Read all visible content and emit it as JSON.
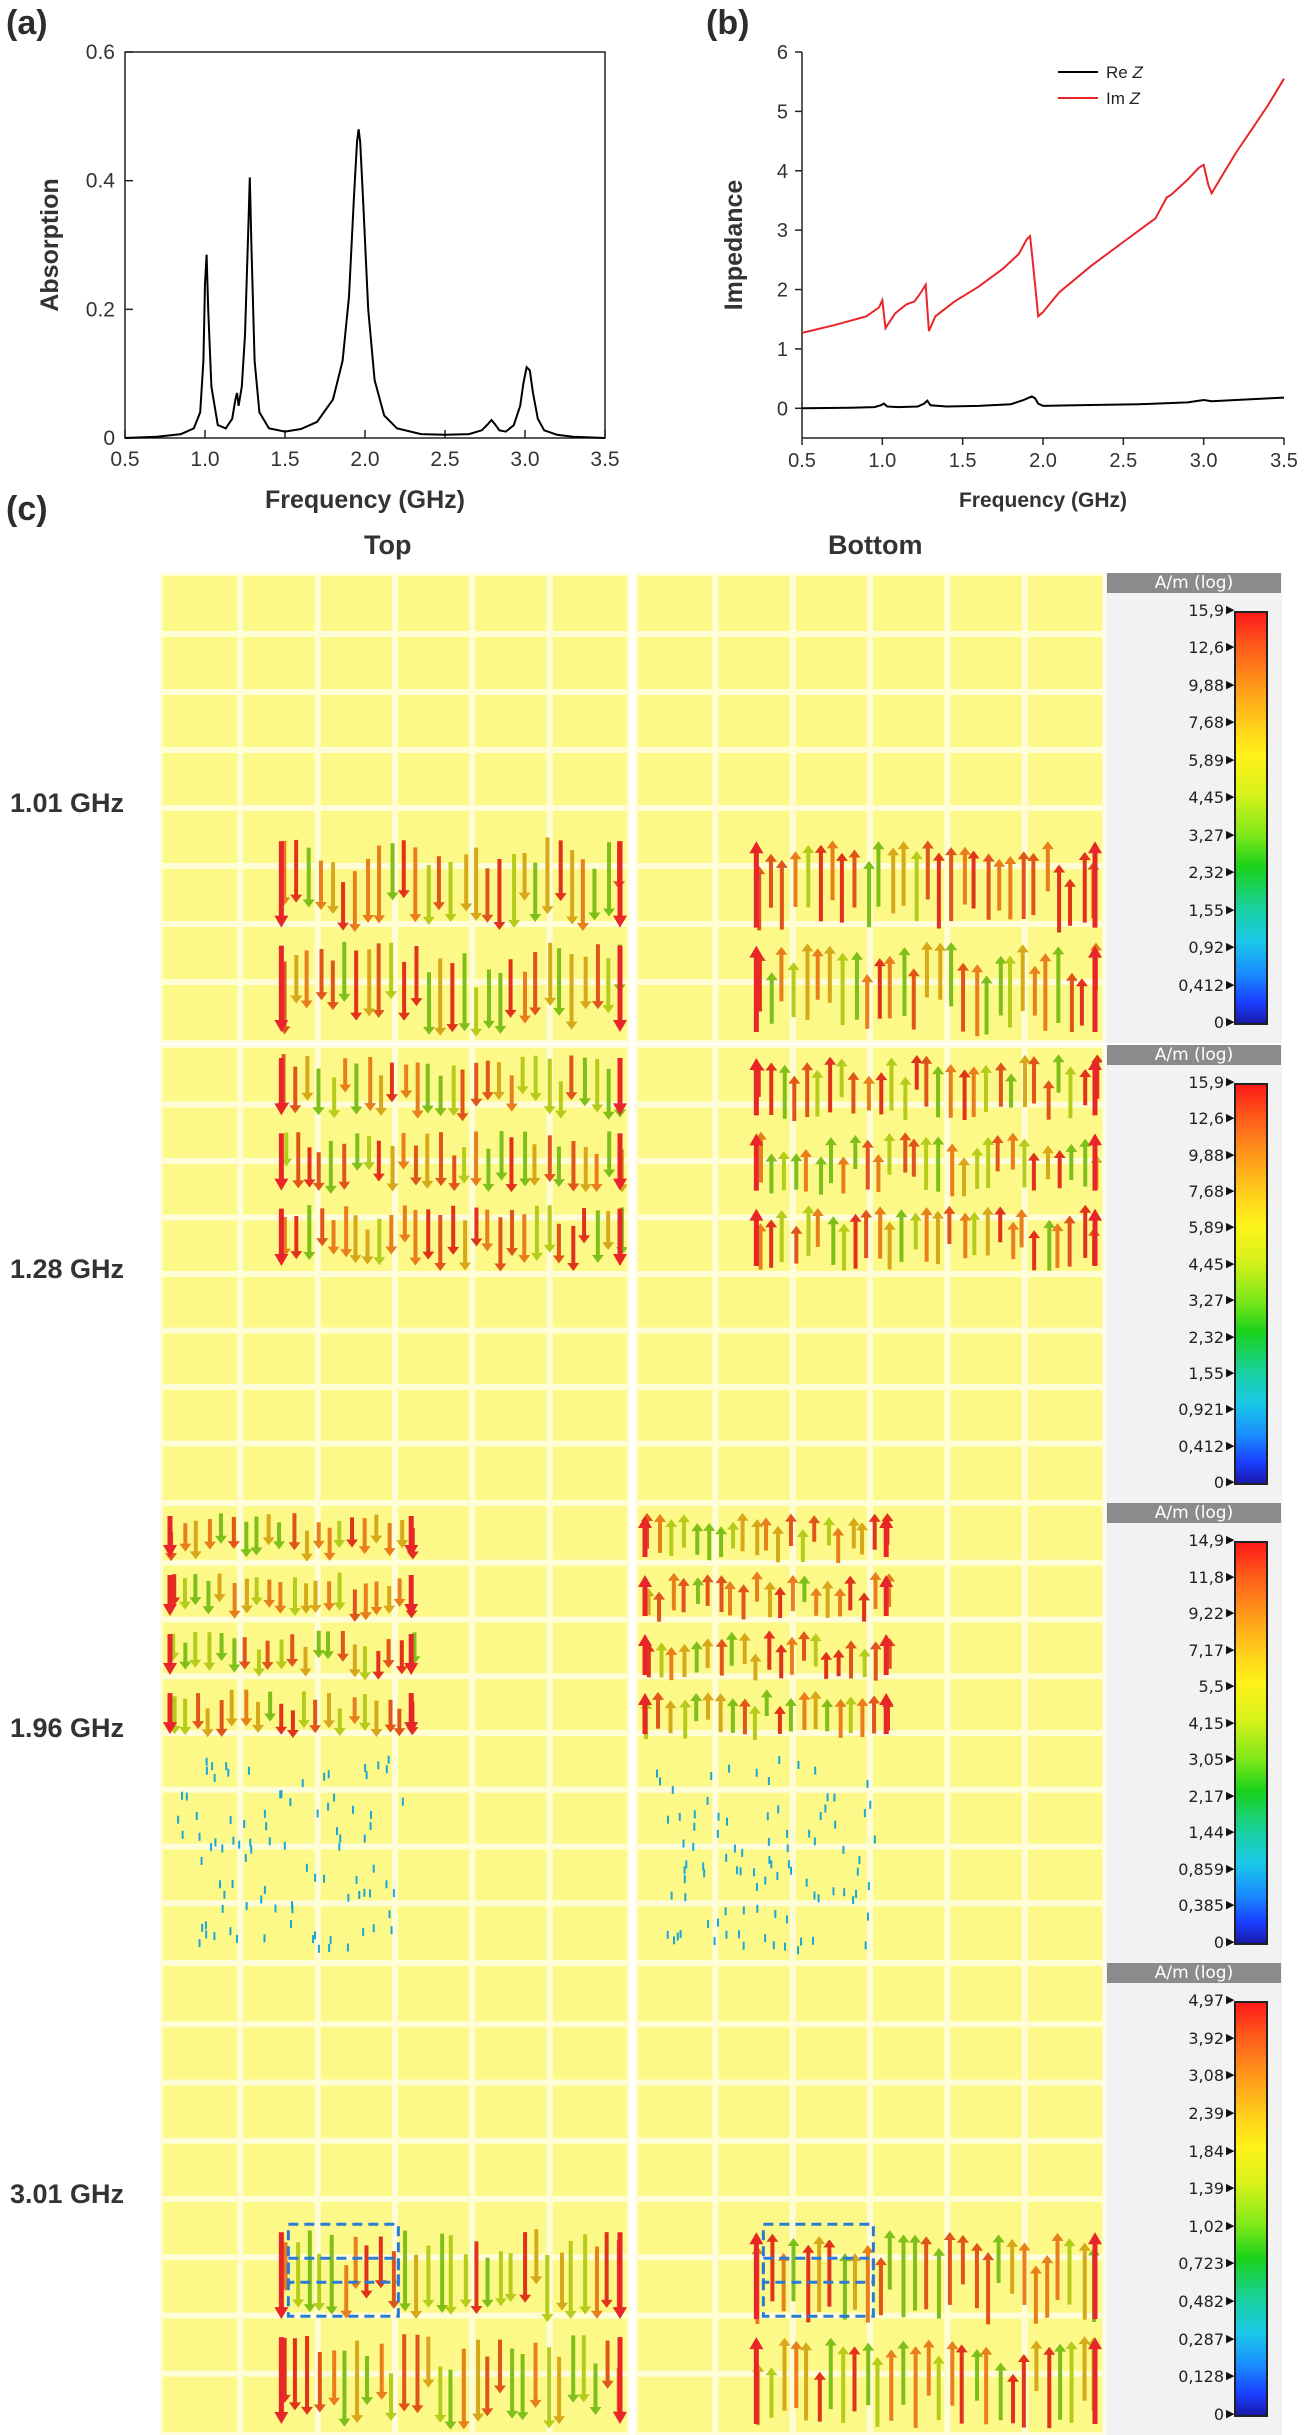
{
  "panel_labels": {
    "a": "(a)",
    "b": "(b)",
    "c": "(c)"
  },
  "chart_data": [
    {
      "type": "line",
      "title": "",
      "xlabel": "Frequency (GHz)",
      "ylabel": "Absorption",
      "xlim": [
        0.5,
        3.5
      ],
      "ylim": [
        0,
        0.6
      ],
      "xticks": [
        "0.5",
        "1.0",
        "1.5",
        "2.0",
        "2.5",
        "3.0",
        "3.5"
      ],
      "yticks": [
        "0",
        "0.2",
        "0.4",
        "0.6"
      ],
      "series": [
        {
          "name": "Absorption",
          "color": "#000000",
          "x": [
            0.5,
            0.7,
            0.85,
            0.93,
            0.97,
            0.99,
            1.0,
            1.01,
            1.02,
            1.04,
            1.08,
            1.13,
            1.17,
            1.19,
            1.2,
            1.21,
            1.23,
            1.25,
            1.27,
            1.28,
            1.29,
            1.31,
            1.34,
            1.4,
            1.5,
            1.6,
            1.7,
            1.8,
            1.86,
            1.9,
            1.93,
            1.95,
            1.96,
            1.97,
            1.99,
            2.02,
            2.06,
            2.12,
            2.2,
            2.35,
            2.5,
            2.65,
            2.73,
            2.77,
            2.79,
            2.81,
            2.84,
            2.88,
            2.93,
            2.97,
            2.99,
            3.01,
            3.03,
            3.05,
            3.08,
            3.12,
            3.2,
            3.3,
            3.4,
            3.5
          ],
          "y": [
            0.0,
            0.002,
            0.006,
            0.015,
            0.04,
            0.12,
            0.24,
            0.285,
            0.2,
            0.08,
            0.02,
            0.015,
            0.03,
            0.06,
            0.07,
            0.05,
            0.08,
            0.16,
            0.32,
            0.405,
            0.3,
            0.12,
            0.04,
            0.015,
            0.01,
            0.014,
            0.025,
            0.06,
            0.12,
            0.22,
            0.37,
            0.46,
            0.48,
            0.46,
            0.36,
            0.2,
            0.09,
            0.035,
            0.015,
            0.006,
            0.005,
            0.006,
            0.012,
            0.022,
            0.028,
            0.022,
            0.012,
            0.01,
            0.02,
            0.05,
            0.085,
            0.11,
            0.105,
            0.07,
            0.03,
            0.012,
            0.005,
            0.002,
            0.001,
            0.0
          ]
        }
      ]
    },
    {
      "type": "line",
      "title": "",
      "xlabel": "Frequency (GHz)",
      "ylabel": "Impedance",
      "xlim": [
        0.5,
        3.5
      ],
      "ylim": [
        -0.5,
        6
      ],
      "xticks": [
        "0.5",
        "1.0",
        "1.5",
        "2.0",
        "2.5",
        "3.0",
        "3.5"
      ],
      "yticks": [
        "0",
        "1",
        "2",
        "3",
        "4",
        "5",
        "6"
      ],
      "legend": "top-right",
      "series": [
        {
          "name": "Re Z",
          "name_main": "Re ",
          "name_italic": "Z",
          "color": "#000000",
          "x": [
            0.5,
            0.8,
            0.95,
            0.99,
            1.01,
            1.03,
            1.1,
            1.22,
            1.26,
            1.28,
            1.3,
            1.4,
            1.6,
            1.8,
            1.88,
            1.93,
            1.95,
            1.97,
            2.0,
            2.2,
            2.6,
            2.9,
            3.0,
            3.05,
            3.2,
            3.5
          ],
          "y": [
            0.0,
            0.01,
            0.02,
            0.05,
            0.08,
            0.03,
            0.02,
            0.03,
            0.08,
            0.13,
            0.05,
            0.03,
            0.04,
            0.07,
            0.14,
            0.2,
            0.17,
            0.08,
            0.04,
            0.05,
            0.07,
            0.1,
            0.14,
            0.12,
            0.14,
            0.18
          ]
        },
        {
          "name": "Im Z",
          "name_main": "Im ",
          "name_italic": "Z",
          "color": "#e8262a",
          "x": [
            0.5,
            0.7,
            0.9,
            0.98,
            1.0,
            1.02,
            1.08,
            1.15,
            1.2,
            1.24,
            1.27,
            1.29,
            1.33,
            1.45,
            1.6,
            1.75,
            1.85,
            1.9,
            1.92,
            1.95,
            1.97,
            2.0,
            2.1,
            2.3,
            2.5,
            2.7,
            2.77,
            2.8,
            2.9,
            2.97,
            3.0,
            3.03,
            3.05,
            3.1,
            3.2,
            3.3,
            3.4,
            3.5
          ],
          "y": [
            1.27,
            1.4,
            1.55,
            1.7,
            1.82,
            1.35,
            1.6,
            1.75,
            1.8,
            1.95,
            2.08,
            1.3,
            1.55,
            1.8,
            2.05,
            2.35,
            2.6,
            2.85,
            2.9,
            2.1,
            1.55,
            1.62,
            1.95,
            2.4,
            2.8,
            3.2,
            3.55,
            3.6,
            3.85,
            4.05,
            4.1,
            3.75,
            3.62,
            3.85,
            4.3,
            4.7,
            5.1,
            5.55
          ]
        }
      ]
    }
  ],
  "figure_c": {
    "col_top": "Top",
    "col_bottom": "Bottom",
    "rows": [
      {
        "freq": "1.01 GHz",
        "cb_title": "A/m (log)",
        "ticks": [
          "15,9",
          "12,6",
          "9,88",
          "7,68",
          "5,89",
          "4,45",
          "3,27",
          "2,32",
          "1,55",
          "0,92",
          "0,412",
          "0"
        ],
        "intensity": 0.75
      },
      {
        "freq": "1.28 GHz",
        "cb_title": "A/m (log)",
        "ticks": [
          "15,9",
          "12,6",
          "9,88",
          "7,68",
          "5,89",
          "4,45",
          "3,27",
          "2,32",
          "1,55",
          "0,921",
          "0,412",
          "0"
        ],
        "intensity": 0.75
      },
      {
        "freq": "1.96 GHz",
        "cb_title": "A/m (log)",
        "ticks": [
          "14,9",
          "11,8",
          "9,22",
          "7,17",
          "5,5",
          "4,15",
          "3,05",
          "2,17",
          "1,44",
          "0,859",
          "0,385",
          "0"
        ],
        "intensity": 0.55
      },
      {
        "freq": "3.01 GHz",
        "cb_title": "A/m (log)",
        "ticks": [
          "4,97",
          "3,92",
          "3,08",
          "2,39",
          "1,84",
          "1,39",
          "1,02",
          "0,723",
          "0,482",
          "0,287",
          "0,128",
          "0"
        ],
        "intensity": 0.85
      }
    ],
    "colors": {
      "field": "#fdf988",
      "grid": "#fffcd8",
      "arrow_red": "#e8262a",
      "dashed_box": "#2a7bd6"
    }
  }
}
